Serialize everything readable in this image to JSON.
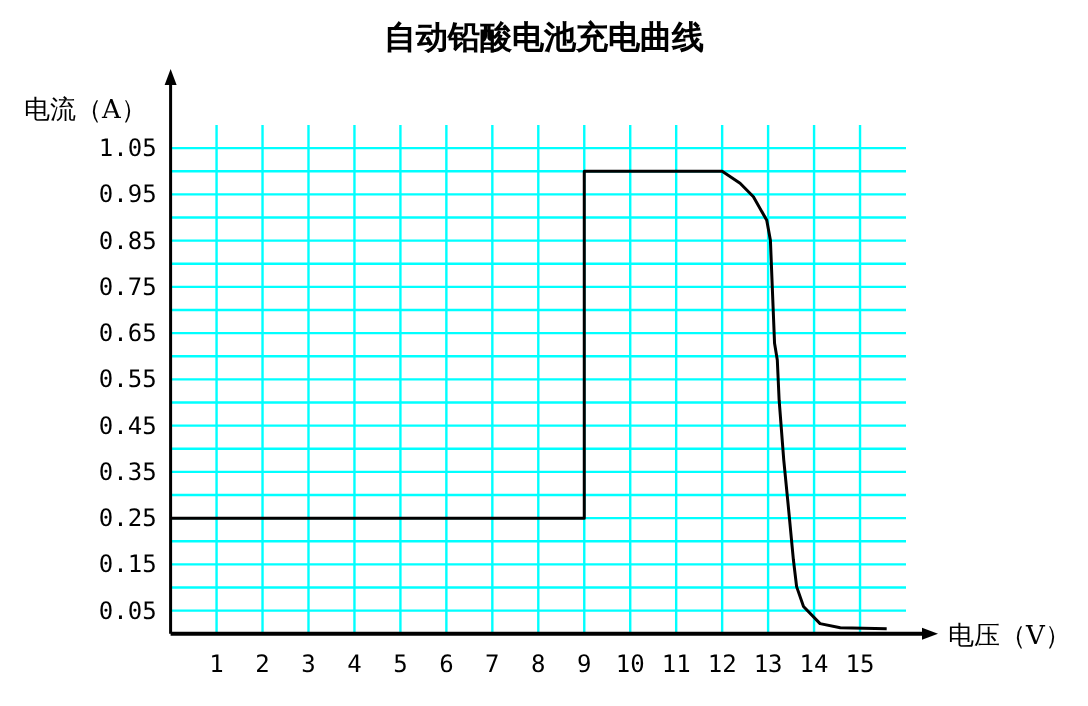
{
  "chart_data": {
    "type": "line",
    "title": "自动铅酸电池充电曲线",
    "xlabel": "电压（V）",
    "ylabel": "电流（A）",
    "xlim": [
      0,
      16
    ],
    "ylim": [
      0,
      1.1
    ],
    "xticks": [
      1,
      2,
      3,
      4,
      5,
      6,
      7,
      8,
      9,
      10,
      11,
      12,
      13,
      14,
      15
    ],
    "yticks": [
      0.05,
      {
        "value": 0.1,
        "label": null
      },
      0.15,
      {
        "value": 0.2,
        "label": null
      },
      0.25,
      {
        "value": 0.3,
        "label": null
      },
      0.35,
      {
        "value": 0.4,
        "label": null
      },
      0.45,
      {
        "value": 0.5,
        "label": null
      },
      0.55,
      {
        "value": 0.6,
        "label": null
      },
      0.65,
      {
        "value": 0.7,
        "label": null
      },
      0.75,
      {
        "value": 0.8,
        "label": null
      },
      0.85,
      {
        "value": 0.9,
        "label": null
      },
      0.95,
      {
        "value": 1.0,
        "label": null
      },
      1.05
    ],
    "grid": true,
    "marker": "none",
    "line_style": "solid",
    "series": [
      {
        "color": "#000000",
        "x": [
          0,
          9,
          9,
          12,
          12.39,
          12.68,
          12.97,
          13.05,
          13.09,
          13.14,
          13.2,
          13.24,
          13.34,
          13.44,
          13.55,
          13.62,
          13.77,
          14.13,
          14.57,
          15.58
        ],
        "values": [
          0.25,
          0.25,
          1.0,
          1.0,
          0.974,
          0.945,
          0.894,
          0.851,
          0.751,
          0.628,
          0.592,
          0.505,
          0.376,
          0.275,
          0.16,
          0.102,
          0.059,
          0.022,
          0.013,
          0.011
        ]
      }
    ]
  }
}
